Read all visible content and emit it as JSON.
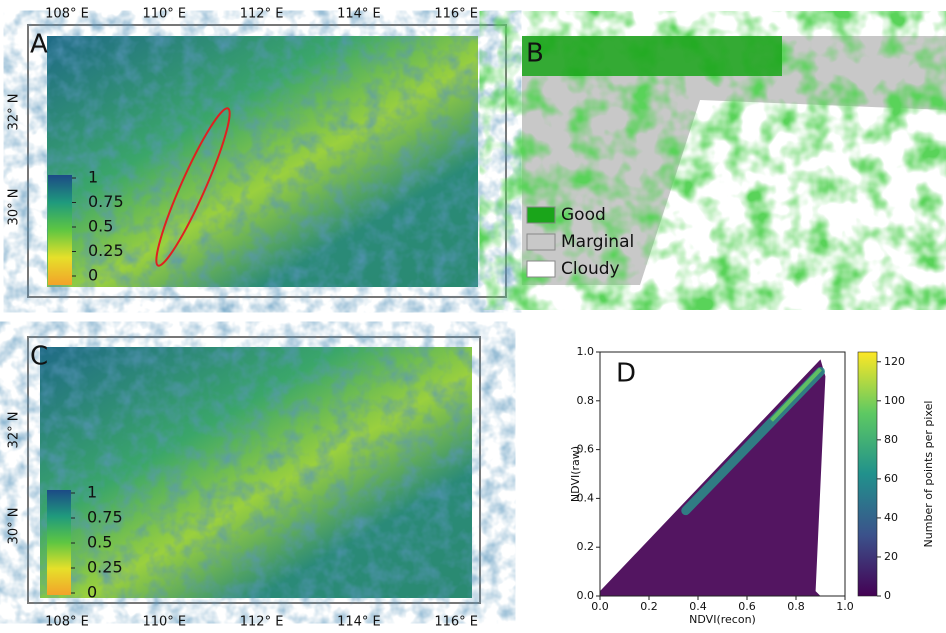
{
  "panels": {
    "a": {
      "label": "A",
      "lon_labels": [
        "108° E",
        "110° E",
        "112° E",
        "114° E",
        "116° E"
      ],
      "lat_labels": [
        "32° N",
        "30° N"
      ],
      "colorbar_lim": [
        0,
        1
      ],
      "colorbar_ticks": [
        1,
        0.75,
        0.5,
        0.25,
        0
      ]
    },
    "b": {
      "label": "B",
      "legend": [
        {
          "name": "Good",
          "color": "#1aa51a"
        },
        {
          "name": "Marginal",
          "color": "#c8c8c8"
        },
        {
          "name": "Cloudy",
          "color": "#ffffff"
        }
      ]
    },
    "c": {
      "label": "C",
      "lon_labels": [
        "108° E",
        "110° E",
        "112° E",
        "114° E",
        "116° E"
      ],
      "lat_labels": [
        "32° N",
        "30° N"
      ],
      "colorbar_lim": [
        0,
        1
      ],
      "colorbar_ticks": [
        1,
        0.75,
        0.5,
        0.25,
        0
      ]
    },
    "d": {
      "label": "D",
      "xlabel": "NDVI(recon)",
      "ylabel": "NDVI(raw)",
      "xlim": [
        0,
        1
      ],
      "ylim": [
        0,
        1
      ],
      "xticks": [
        {
          "value": 0,
          "label": "0.0"
        },
        0.2,
        0.4,
        0.6,
        0.8,
        {
          "value": 1,
          "label": "1.0"
        }
      ],
      "yticks": [
        {
          "value": 0,
          "label": "0.0"
        },
        0.2,
        0.4,
        0.6,
        0.8,
        {
          "value": 1,
          "label": "1.0"
        }
      ],
      "colorbar": {
        "label": "Number of points per pixel",
        "lim": [
          0,
          125
        ],
        "ticks": [
          0,
          20,
          40,
          60,
          80,
          100,
          120
        ]
      }
    }
  }
}
